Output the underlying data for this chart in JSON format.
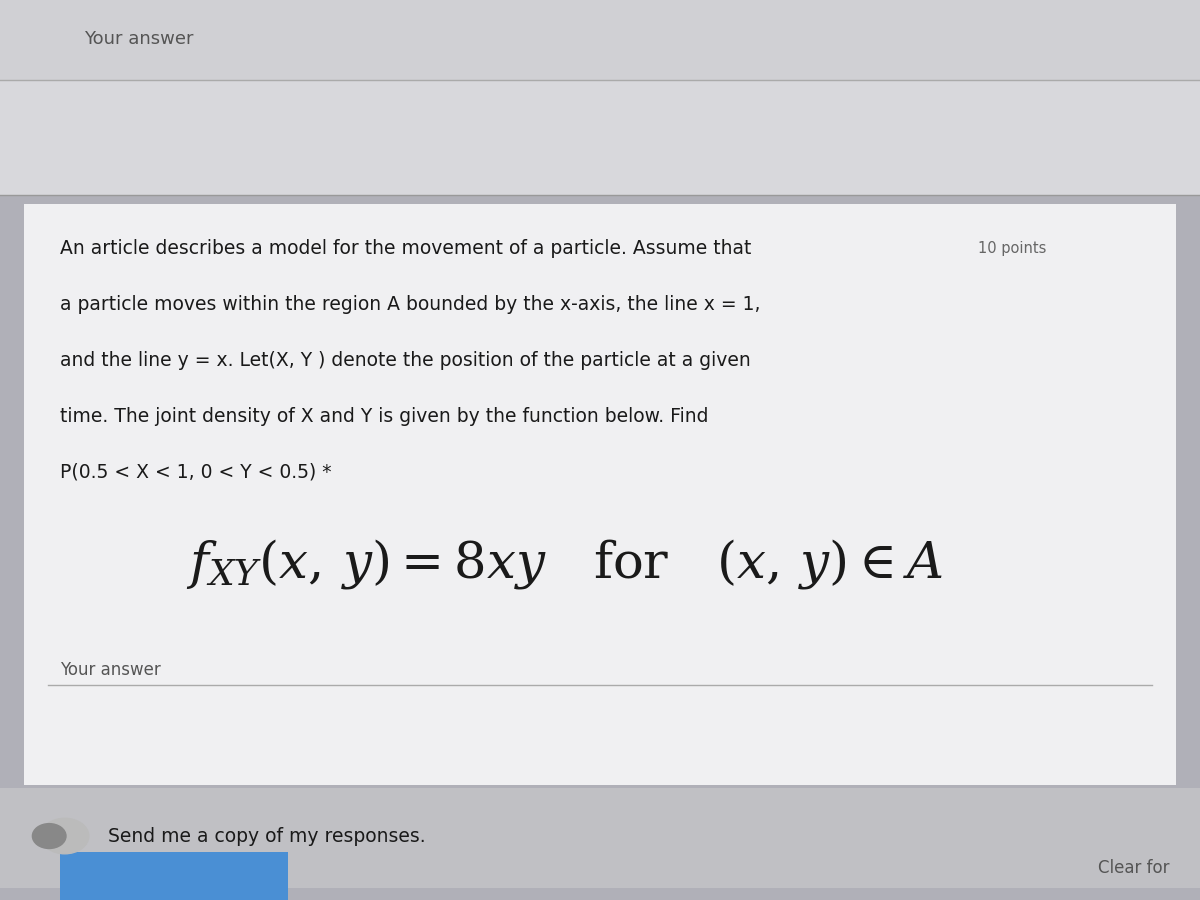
{
  "bg_color_outer": "#b0b0b8",
  "bg_color_top_bar": "#d0d0d4",
  "bg_color_answer_box": "#d8d8dc",
  "bg_color_card": "#f0f0f2",
  "bg_color_bottom": "#c0c0c4",
  "text_color_main": "#1a1a1a",
  "text_color_gray": "#555555",
  "text_color_points": "#666666",
  "top_label": "Your answer",
  "paragraph_text_line1": "An article describes a model for the movement of a particle. Assume that",
  "paragraph_text_points": "10 points",
  "paragraph_text_line2": "a particle moves within the region A bounded by the x-axis, the line x = 1,",
  "paragraph_text_line3": "and the line y = x. Let(X, Y ) denote the position of the particle at a given",
  "paragraph_text_line4": "time. The joint density of X and Y is given by the function below. Find",
  "paragraph_text_line5": "P(0.5 < X < 1, 0 < Y < 0.5) *",
  "bottom_label": "Your answer",
  "bottom_send": "Send me a copy of my responses.",
  "bottom_clear": "Clear for"
}
